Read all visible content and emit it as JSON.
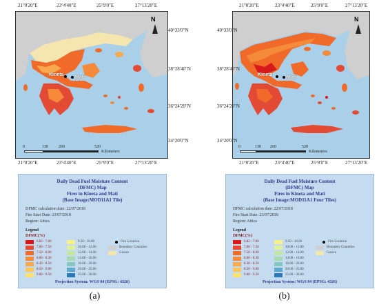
{
  "panels": [
    {
      "caption": "(a)",
      "coords_top": [
        "21°0'20\"E",
        "23°4'40\"E",
        "25°9'0\"E",
        "27°13'20\"E"
      ],
      "coords_bottom": [
        "21°0'20\"E",
        "23°4'40\"E",
        "25°9'0\"E",
        "27°13'20\"E"
      ],
      "coords_right": [
        "40°33'0\"N",
        "38°28'40\"N",
        "36°24'20\"N",
        "34°20'0\"N"
      ],
      "scale_ticks": [
        "0",
        "130",
        "260",
        "520"
      ],
      "scale_unit": "Kilometers",
      "north": "N",
      "cities": [
        "Kineta",
        "Mati"
      ],
      "legend": {
        "title1": "Daily Dead Fuel Moisture Content",
        "title2": "(DFMC) Map",
        "title3": "Fires in Kineta and Mati",
        "title4": "(Base Image:MOD11A1 Tile)",
        "info1": "DFMC calculation date: 22/07/2018",
        "info2": "Fire Start Date: 23/07/2018",
        "info3": "Region: Attica",
        "legend_label": "Legend",
        "unit_label": "DFMC(%)",
        "fire_location": "Fire Location",
        "boundary": "Boundary Countries",
        "greece": "Greece",
        "projection": "Projection System: WGS 84 (EPSG: 4326)"
      }
    },
    {
      "caption": "(b)",
      "coords_top": [
        "21°0'20\"E",
        "23°4'40\"E",
        "25°9'0\"E",
        "27°13'20\"E"
      ],
      "coords_bottom": [
        "21°0'20\"E",
        "23°4'40\"E",
        "25°9'0\"E",
        "27°13'20\"E"
      ],
      "coords_right": [
        "40°33'0\"N",
        "38°28'40\"N",
        "36°24'20\"N",
        "34°20'0\"N"
      ],
      "scale_ticks": [
        "0",
        "130",
        "260",
        "520"
      ],
      "scale_unit": "Kilometers",
      "north": "N",
      "cities": [
        "Kineta",
        "Mati"
      ],
      "legend": {
        "title1": "Daily Dead Fuel Moisture Content",
        "title2": "(DFMC) Map",
        "title3": "Fires in Kineta and Mati",
        "title4": "(Base Image:MOD11A1 Four Tiles)",
        "info1": "DFMC calculation date: 22/07/2018",
        "info2": "Fire Start Date: 23/07/2018",
        "info3": "Region: Attica",
        "legend_label": "Legend",
        "unit_label": "DFMC(%)",
        "fire_location": "Fire Location",
        "boundary": "Boundary Countries",
        "greece": "Greece",
        "projection": "Projection System: WGS 84 (EPSG: 4326)"
      }
    }
  ],
  "classes_left": [
    {
      "label": "6.82 - 7.00",
      "color": "#d7191c"
    },
    {
      "label": "7.00 - 7.50",
      "color": "#e34a33"
    },
    {
      "label": "7.50 - 8.00",
      "color": "#f06b2a"
    },
    {
      "label": "8.00 - 8.30",
      "color": "#f58a3a"
    },
    {
      "label": "8.30 - 8.50",
      "color": "#f9a94d"
    },
    {
      "label": "8.50 - 9.00",
      "color": "#fcc65f"
    },
    {
      "label": "9.00 - 9.50",
      "color": "#fde272"
    }
  ],
  "classes_right": [
    {
      "label": "9.50 - 10.00",
      "color": "#f6f08a"
    },
    {
      "label": "10.00 - 12.00",
      "color": "#e0ef9a"
    },
    {
      "label": "12.00 - 14.00",
      "color": "#c5e6a3"
    },
    {
      "label": "14.00 - 16.00",
      "color": "#a7dab0"
    },
    {
      "label": "16.00 - 20.00",
      "color": "#86c7c1"
    },
    {
      "label": "20.00 - 25.00",
      "color": "#5fa9cf"
    },
    {
      "label": "25.00 - 30.00",
      "color": "#2c7bb6"
    }
  ],
  "colors": {
    "sea": "#a9cfe9",
    "boundary": "#cfcfcf",
    "greece": "#f5e6b0",
    "fire": "#f08a2c"
  }
}
